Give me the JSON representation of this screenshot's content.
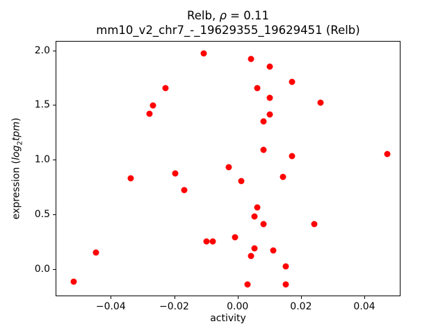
{
  "figure": {
    "title_line1": {
      "prefix": "Relb, ",
      "rho": "ρ",
      "suffix": " = 0.11"
    },
    "title_line2": "mm10_v2_chr7_-_19629355_19629451 (Relb)",
    "xlabel": "activity",
    "ylabel": {
      "prefix": "expression (",
      "log": "log",
      "sub": "2",
      "tpm": "tpm",
      "suffix": ")"
    }
  },
  "chart_data": {
    "type": "scatter",
    "title": "Relb, ρ = 0.11",
    "subtitle": "mm10_v2_chr7_-_19629355_19629451 (Relb)",
    "xlabel": "activity",
    "ylabel": "expression (log2tpm)",
    "legend": null,
    "grid": false,
    "marker_color": "#ff0000",
    "marker_diameter_px": 9,
    "xlim": [
      -0.0574,
      0.0514
    ],
    "ylim": [
      -0.247,
      2.086
    ],
    "xticks": {
      "values": [
        -0.04,
        -0.02,
        0.0,
        0.02,
        0.04
      ],
      "labels": [
        "−0.04",
        "−0.02",
        "0.00",
        "0.02",
        "0.04"
      ]
    },
    "yticks": {
      "values": [
        0.0,
        0.5,
        1.0,
        1.5,
        2.0
      ],
      "labels": [
        "0.0",
        "0.5",
        "1.0",
        "1.5",
        "2.0"
      ]
    },
    "points": [
      [
        -0.052,
        -0.11
      ],
      [
        -0.045,
        0.16
      ],
      [
        -0.034,
        0.84
      ],
      [
        -0.028,
        1.43
      ],
      [
        -0.027,
        1.5
      ],
      [
        -0.023,
        1.66
      ],
      [
        -0.02,
        0.88
      ],
      [
        -0.017,
        0.73
      ],
      [
        -0.011,
        1.98
      ],
      [
        -0.01,
        0.26
      ],
      [
        -0.008,
        0.26
      ],
      [
        -0.003,
        0.94
      ],
      [
        -0.001,
        0.3
      ],
      [
        0.001,
        0.81
      ],
      [
        0.003,
        -0.13
      ],
      [
        0.004,
        0.13
      ],
      [
        0.004,
        1.93
      ],
      [
        0.005,
        0.2
      ],
      [
        0.005,
        0.49
      ],
      [
        0.006,
        0.57
      ],
      [
        0.006,
        1.66
      ],
      [
        0.008,
        0.42
      ],
      [
        0.008,
        1.1
      ],
      [
        0.008,
        1.36
      ],
      [
        0.01,
        1.42
      ],
      [
        0.01,
        1.57
      ],
      [
        0.01,
        1.86
      ],
      [
        0.011,
        0.18
      ],
      [
        0.014,
        0.85
      ],
      [
        0.015,
        -0.13
      ],
      [
        0.015,
        0.03
      ],
      [
        0.017,
        1.04
      ],
      [
        0.017,
        1.72
      ],
      [
        0.024,
        0.42
      ],
      [
        0.026,
        1.53
      ],
      [
        0.047,
        1.06
      ]
    ]
  }
}
